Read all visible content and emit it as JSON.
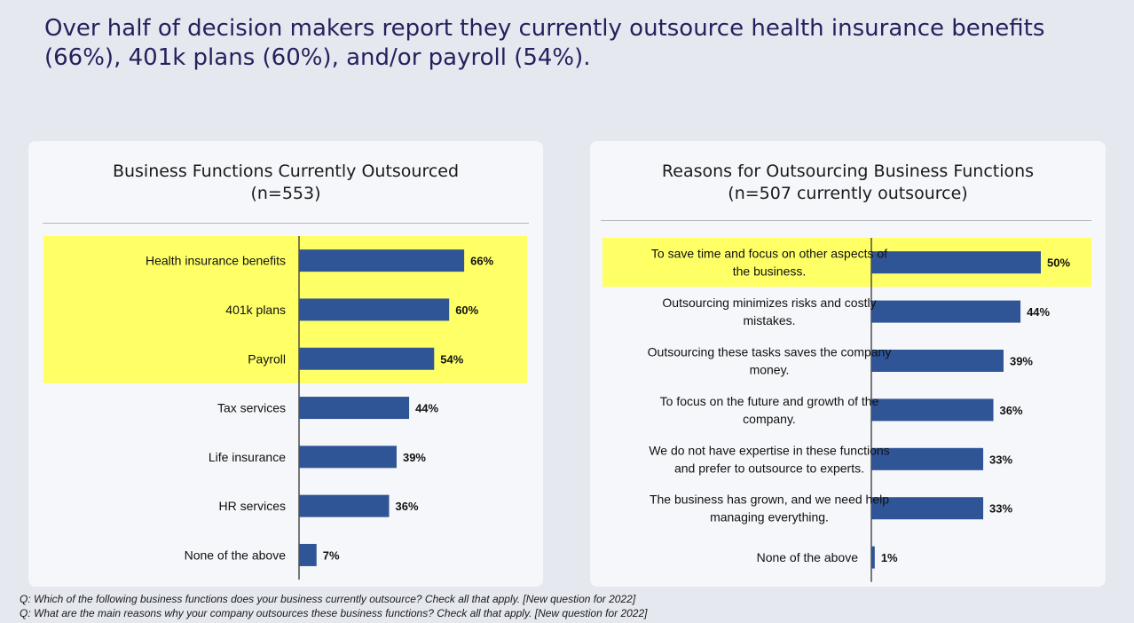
{
  "headline": "Over half of decision makers report they currently outsource health insurance benefits (66%), 401k plans (60%), and/or payroll (54%).",
  "colors": {
    "bar": "#2f5597",
    "highlight": "#ffff66",
    "background": "#e6e8f0",
    "panel": "#f6f7fa",
    "headline": "#26215e"
  },
  "left_panel": {
    "title_line1": "Business Functions Currently Outsourced",
    "title_line2": "(n=553)"
  },
  "right_panel": {
    "title_line1": "Reasons for Outsourcing Business Functions",
    "title_line2": "(n=507 currently outsource)"
  },
  "chart_data": [
    {
      "type": "bar",
      "orientation": "horizontal",
      "title": "Business Functions Currently Outsourced (n=553)",
      "categories": [
        "Health insurance benefits",
        "401k plans",
        "Payroll",
        "Tax services",
        "Life insurance",
        "HR services",
        "None of the above"
      ],
      "values": [
        66,
        60,
        54,
        44,
        39,
        36,
        7
      ],
      "value_labels": [
        "66%",
        "60%",
        "54%",
        "44%",
        "39%",
        "36%",
        "7%"
      ],
      "highlighted": [
        "Health insurance benefits",
        "401k plans",
        "Payroll"
      ],
      "unit": "%",
      "xlim": [
        0,
        100
      ],
      "grid": false,
      "legend": "none"
    },
    {
      "type": "bar",
      "orientation": "horizontal",
      "title": "Reasons for Outsourcing Business Functions (n=507 currently outsource)",
      "categories": [
        [
          "To save time and focus on other aspects of",
          "the business."
        ],
        [
          "Outsourcing minimizes risks and costly",
          "mistakes."
        ],
        [
          "Outsourcing these tasks saves the company",
          "money."
        ],
        [
          "To focus on the future and growth of the",
          "company."
        ],
        [
          "We do not have expertise in these functions",
          "and prefer to outsource to experts."
        ],
        [
          "The business has grown, and we need help",
          "managing everything."
        ],
        [
          "None of the above"
        ]
      ],
      "values": [
        50,
        44,
        39,
        36,
        33,
        33,
        1
      ],
      "value_labels": [
        "50%",
        "44%",
        "39%",
        "36%",
        "33%",
        "33%",
        "1%"
      ],
      "highlighted_index": [
        0
      ],
      "unit": "%",
      "xlim": [
        0,
        100
      ],
      "grid": false,
      "legend": "none"
    }
  ],
  "footnotes": [
    "Q: Which of the following business functions does your business currently outsource? Check all that apply. [New question for 2022]",
    "Q: What are the main reasons why your company outsources these business functions?  Check all that apply. [New question for 2022]"
  ]
}
